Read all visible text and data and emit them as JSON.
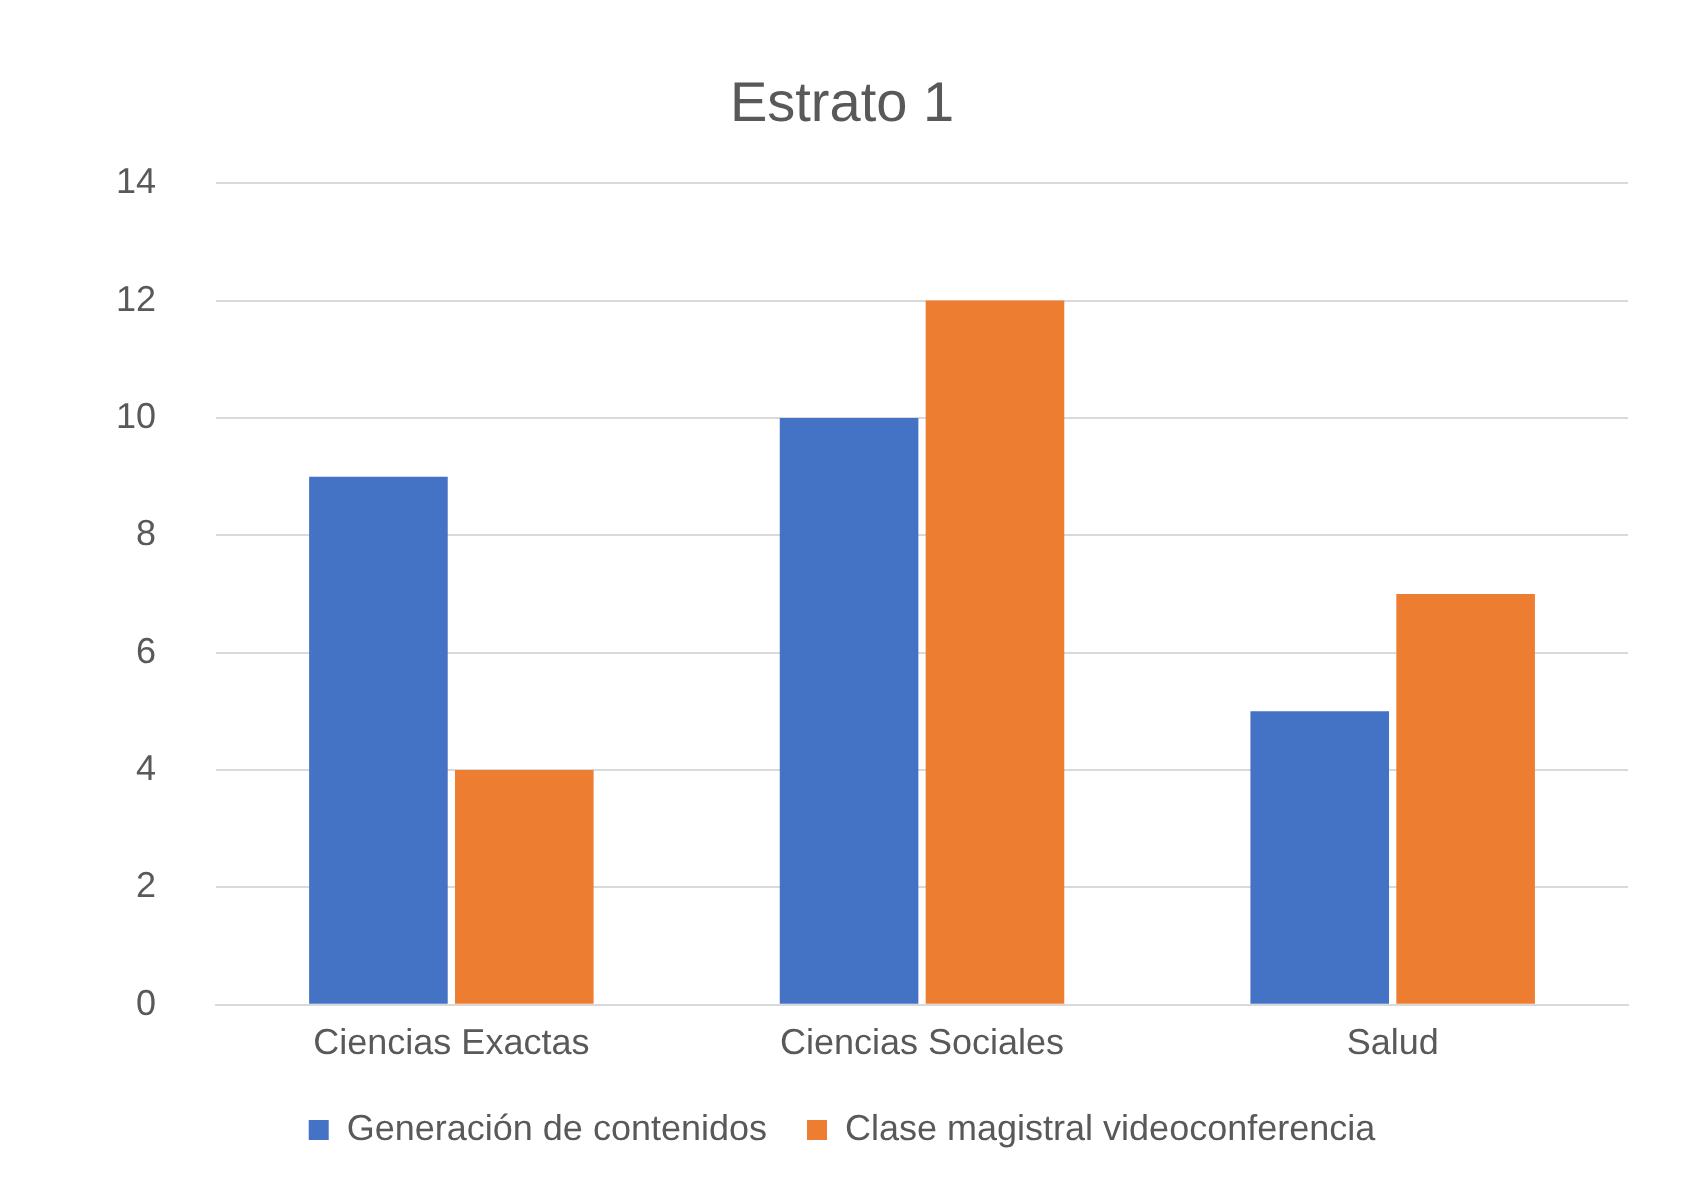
{
  "chart_data": {
    "type": "bar",
    "title": "Estrato 1",
    "categories": [
      "Ciencias Exactas",
      "Ciencias Sociales",
      "Salud"
    ],
    "series": [
      {
        "name": "Generación de contenidos",
        "color": "#4472c4",
        "values": [
          9,
          10,
          5
        ]
      },
      {
        "name": "Clase magistral videoconferencia",
        "color": "#ed7d31",
        "values": [
          4,
          12,
          7
        ]
      }
    ],
    "ylim": [
      0,
      14
    ],
    "yticks": [
      0,
      2,
      4,
      6,
      8,
      10,
      12,
      14
    ],
    "grid": "y",
    "legend": "bottom"
  }
}
